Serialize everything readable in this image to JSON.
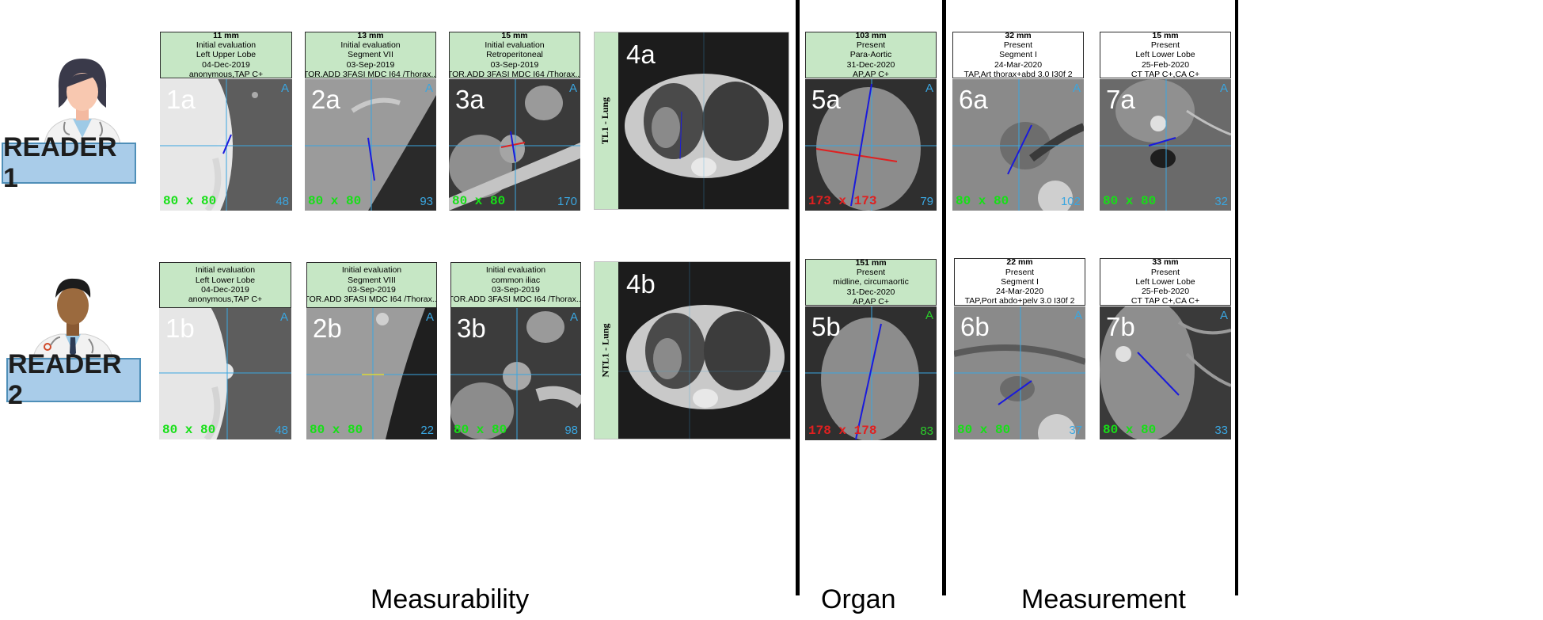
{
  "readers": [
    {
      "label": "READER 1"
    },
    {
      "label": "READER 2"
    }
  ],
  "sections": {
    "measurability": "Measurability",
    "organ": "Organ",
    "measurement": "Measurement"
  },
  "row_a": [
    {
      "id": "1a",
      "header": [
        "11 mm",
        "Initial evaluation",
        "Left Upper Lobe",
        "04-Dec-2019",
        "anonymous,TAP C+"
      ],
      "size": "80 x 80",
      "num": "48"
    },
    {
      "id": "2a",
      "header": [
        "13 mm",
        "Initial evaluation",
        "Segment VII",
        "03-Sep-2019",
        "TOR.ADD 3FASI MDC I64 /Thorax..."
      ],
      "size": "80 x 80",
      "num": "93"
    },
    {
      "id": "3a",
      "header": [
        "15 mm",
        "Initial evaluation",
        "Retroperitoneal",
        "03-Sep-2019",
        "TOR.ADD 3FASI MDC I64 /Thorax..."
      ],
      "size": "80 x 80",
      "num": "170"
    },
    {
      "id": "4a",
      "side_label": "TL1 - Lung"
    },
    {
      "id": "5a",
      "header": [
        "103 mm",
        "Present",
        "Para-Aortic",
        "31-Dec-2020",
        "AP,AP C+"
      ],
      "size": "173 x 173",
      "num": "79"
    },
    {
      "id": "6a",
      "header": [
        "32 mm",
        "Present",
        "Segment I",
        "24-Mar-2020",
        "TAP,Art thorax+abd 3.0 I30f 2"
      ],
      "size": "80 x 80",
      "num": "102"
    },
    {
      "id": "7a",
      "header": [
        "15 mm",
        "Present",
        "Left Lower Lobe",
        "25-Feb-2020",
        "CT TAP C+,CA C+"
      ],
      "size": "80 x 80",
      "num": "32"
    }
  ],
  "row_b": [
    {
      "id": "1b",
      "header": [
        "Initial evaluation",
        "Left Lower Lobe",
        "04-Dec-2019",
        "anonymous,TAP C+"
      ],
      "size": "80 x 80",
      "num": "48"
    },
    {
      "id": "2b",
      "header": [
        "Initial evaluation",
        "Segment VIII",
        "03-Sep-2019",
        "TOR.ADD 3FASI MDC I64 /Thorax..."
      ],
      "size": "80 x 80",
      "num": "22"
    },
    {
      "id": "3b",
      "header": [
        "Initial evaluation",
        "common iliac",
        "03-Sep-2019",
        "TOR.ADD 3FASI MDC I64 /Thorax..."
      ],
      "size": "80 x 80",
      "num": "98"
    },
    {
      "id": "4b",
      "side_label": "NTL1 - Lung"
    },
    {
      "id": "5b",
      "header": [
        "151 mm",
        "Present",
        "midline, circumaortic",
        "31-Dec-2020",
        "AP,AP C+"
      ],
      "size": "178 x 178",
      "num": "83"
    },
    {
      "id": "6b",
      "header": [
        "22 mm",
        "Present",
        "Segment I",
        "24-Mar-2020",
        "TAP,Port abdo+pelv 3.0 I30f 2"
      ],
      "size": "80 x 80",
      "num": "37"
    },
    {
      "id": "7b",
      "header": [
        "33 mm",
        "Present",
        "Left Lower Lobe",
        "25-Feb-2020",
        "CT TAP C+,CA C+"
      ],
      "size": "80 x 80",
      "num": "33"
    }
  ],
  "overlay_letter": "A",
  "colors": {
    "header_green": "#c6e7c5",
    "reader_box": "#a9cce9",
    "measure_blue": "#1a1adc",
    "measure_red": "#e02020",
    "crosshair": "#3aa6e0"
  }
}
